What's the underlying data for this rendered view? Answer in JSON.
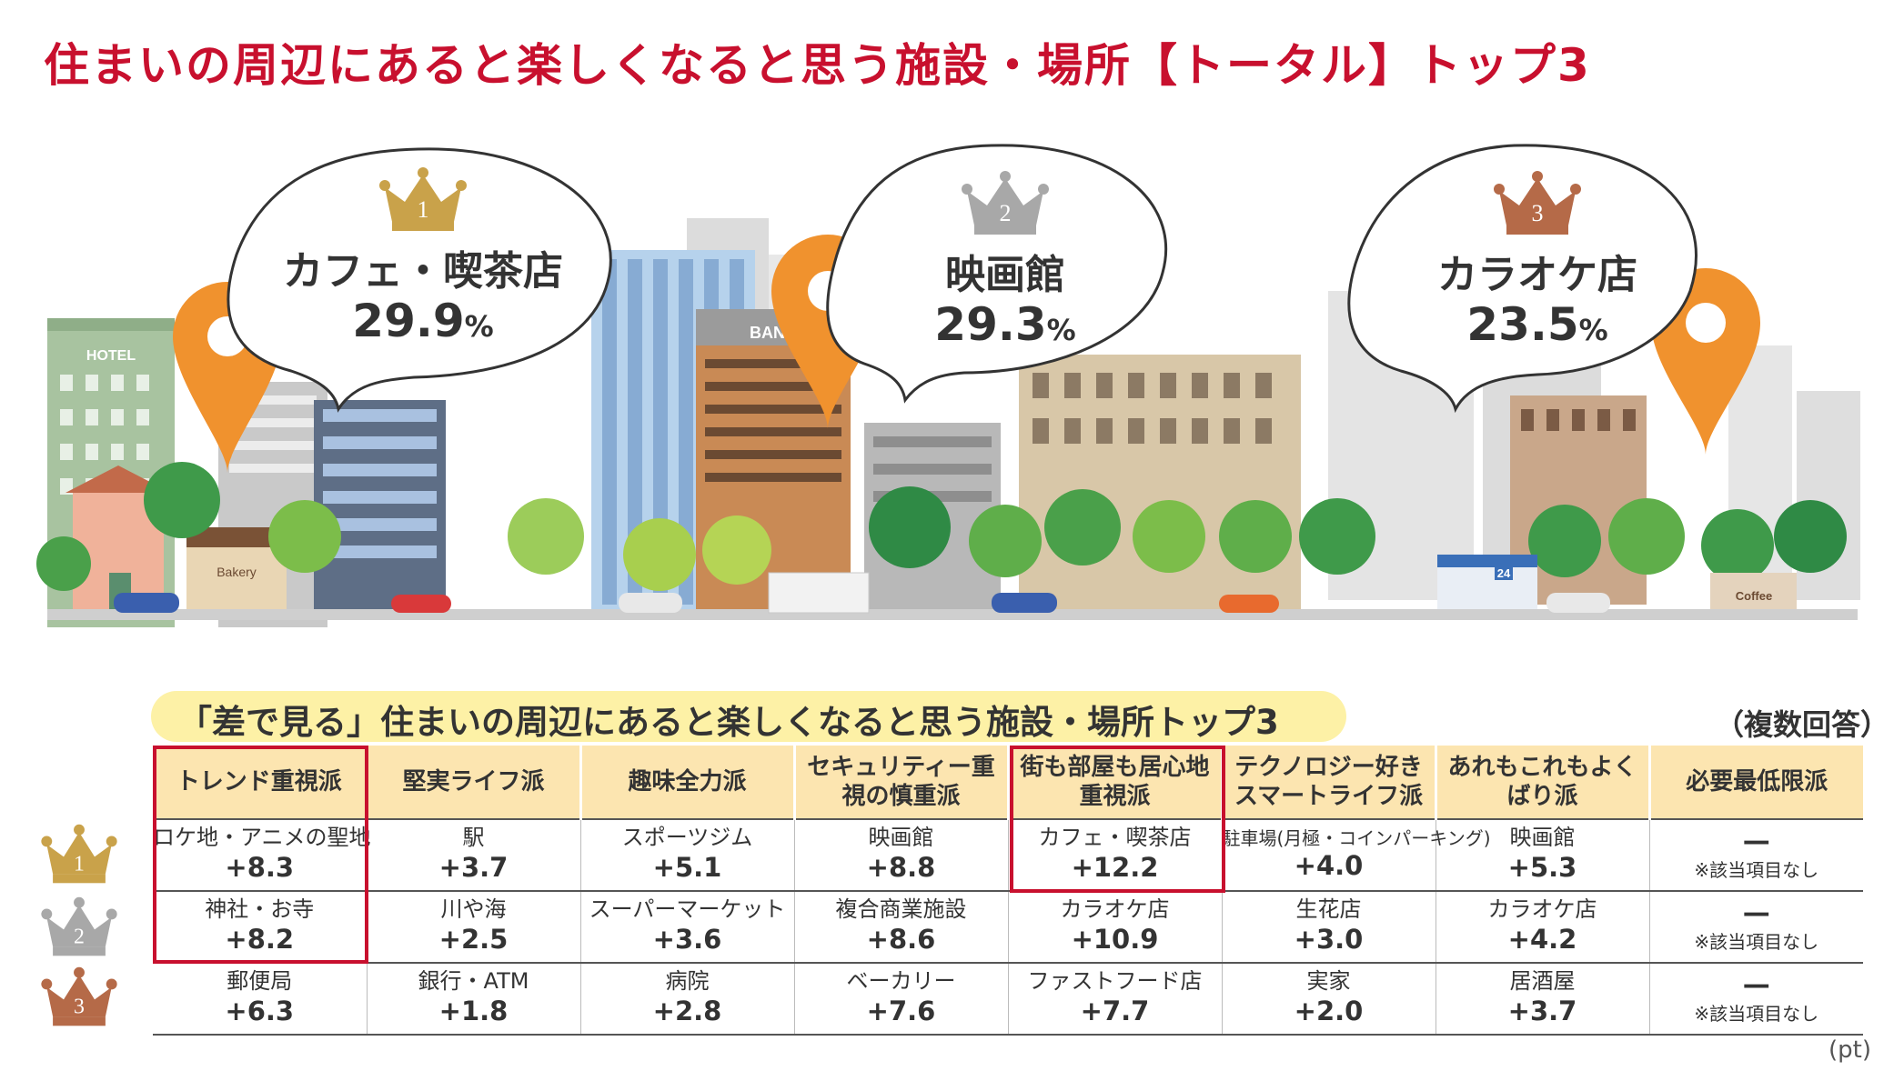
{
  "title": "住まいの周辺にあると楽しくなると思う施設・場所【トータル】トップ3",
  "top3": [
    {
      "rank": "1",
      "name": "カフェ・喫茶店",
      "value": "29.9",
      "unit": "%"
    },
    {
      "rank": "2",
      "name": "映画館",
      "value": "29.3",
      "unit": "%"
    },
    {
      "rank": "3",
      "name": "カラオケ店",
      "value": "23.5",
      "unit": "%"
    }
  ],
  "city_signs": {
    "hotel": "HOTEL",
    "bank": "BANK",
    "bakery": "Bakery",
    "coffee": "Coffee",
    "conbini": "24"
  },
  "subtitle": "「差で見る」住まいの周辺にあると楽しくなると思う施設・場所トップ3",
  "note": "（複数回答）",
  "unit_label": "(pt)",
  "rank_labels": [
    "1",
    "2",
    "3"
  ],
  "columns": [
    "トレンド重視派",
    "堅実ライフ派",
    "趣味全力派",
    "セキュリティー重視の慎重派",
    "街も部屋も居心地重視派",
    "テクノロジー好きスマートライフ派",
    "あれもこれもよくばり派",
    "必要最低限派"
  ],
  "rows": [
    {
      "cells": [
        {
          "place": "ロケ地・アニメの聖地",
          "value": "+8.3"
        },
        {
          "place": "駅",
          "value": "+3.7"
        },
        {
          "place": "スポーツジム",
          "value": "+5.1"
        },
        {
          "place": "映画館",
          "value": "+8.8"
        },
        {
          "place": "カフェ・喫茶店",
          "value": "+12.2"
        },
        {
          "place": "駐車場(月極・コインパーキング)",
          "value": "+4.0"
        },
        {
          "place": "映画館",
          "value": "+5.3"
        },
        {
          "place": "—",
          "value": "※該当項目なし"
        }
      ]
    },
    {
      "cells": [
        {
          "place": "神社・お寺",
          "value": "+8.2"
        },
        {
          "place": "川や海",
          "value": "+2.5"
        },
        {
          "place": "スーパーマーケット",
          "value": "+3.6"
        },
        {
          "place": "複合商業施設",
          "value": "+8.6"
        },
        {
          "place": "カラオケ店",
          "value": "+10.9"
        },
        {
          "place": "生花店",
          "value": "+3.0"
        },
        {
          "place": "カラオケ店",
          "value": "+4.2"
        },
        {
          "place": "—",
          "value": "※該当項目なし"
        }
      ]
    },
    {
      "cells": [
        {
          "place": "郵便局",
          "value": "+6.3"
        },
        {
          "place": "銀行・ATM",
          "value": "+1.8"
        },
        {
          "place": "病院",
          "value": "+2.8"
        },
        {
          "place": "ベーカリー",
          "value": "+7.6"
        },
        {
          "place": "ファストフード店",
          "value": "+7.7"
        },
        {
          "place": "実家",
          "value": "+2.0"
        },
        {
          "place": "居酒屋",
          "value": "+3.7"
        },
        {
          "place": "—",
          "value": "※該当項目なし"
        }
      ]
    }
  ],
  "colors": {
    "title": "#c8102e",
    "gold": "#c9a24a",
    "silver": "#a8a8a8",
    "bronze": "#b56a48",
    "pin": "#f0922e",
    "header_bg": "#fce5b0",
    "subtitle_bg": "#fdf1a6",
    "highlight": "#c8102e"
  }
}
